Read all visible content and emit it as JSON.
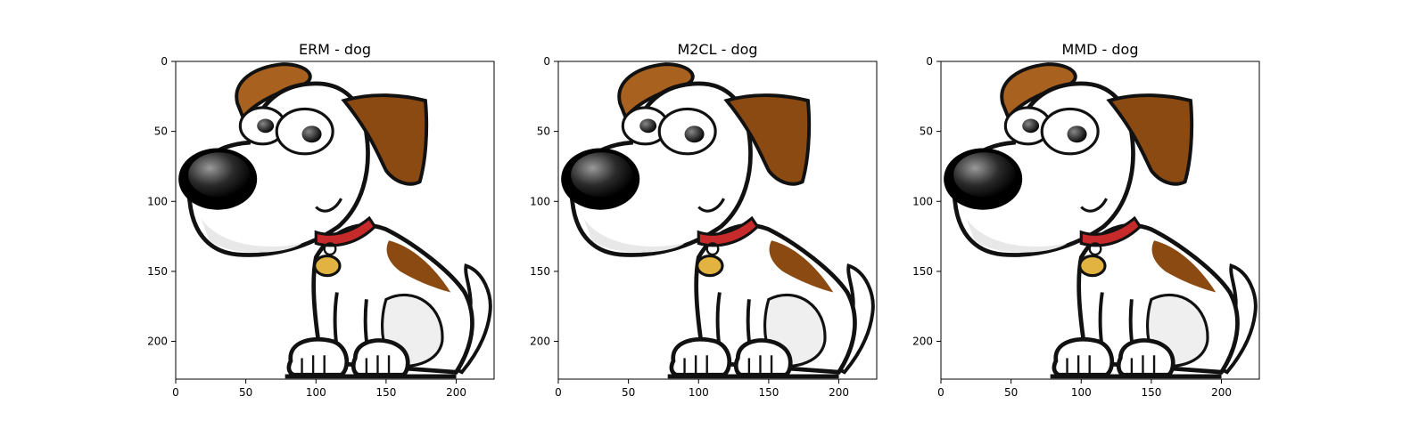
{
  "chart_data": [
    {
      "type": "image",
      "title": "ERM - dog",
      "xlabel": "",
      "ylabel": "",
      "xlim": [
        0,
        227
      ],
      "ylim": [
        227,
        0
      ],
      "xticks": [
        0,
        50,
        100,
        150,
        200
      ],
      "yticks": [
        0,
        50,
        100,
        150,
        200
      ],
      "content": "dog-cartoon"
    },
    {
      "type": "image",
      "title": "M2CL - dog",
      "xlabel": "",
      "ylabel": "",
      "xlim": [
        0,
        227
      ],
      "ylim": [
        227,
        0
      ],
      "xticks": [
        0,
        50,
        100,
        150,
        200
      ],
      "yticks": [
        0,
        50,
        100,
        150,
        200
      ],
      "content": "dog-cartoon"
    },
    {
      "type": "image",
      "title": "MMD - dog",
      "xlabel": "",
      "ylabel": "",
      "xlim": [
        0,
        227
      ],
      "ylim": [
        227,
        0
      ],
      "xticks": [
        0,
        50,
        100,
        150,
        200
      ],
      "yticks": [
        0,
        50,
        100,
        150,
        200
      ],
      "content": "dog-cartoon"
    }
  ],
  "colors": {
    "ear": "#8a4a12",
    "ear_light": "#a8611f",
    "collar": "#c62a2a",
    "tag": "#e2b340",
    "outline": "#111111",
    "body": "#ffffff",
    "shade": "#e6e6e6"
  }
}
